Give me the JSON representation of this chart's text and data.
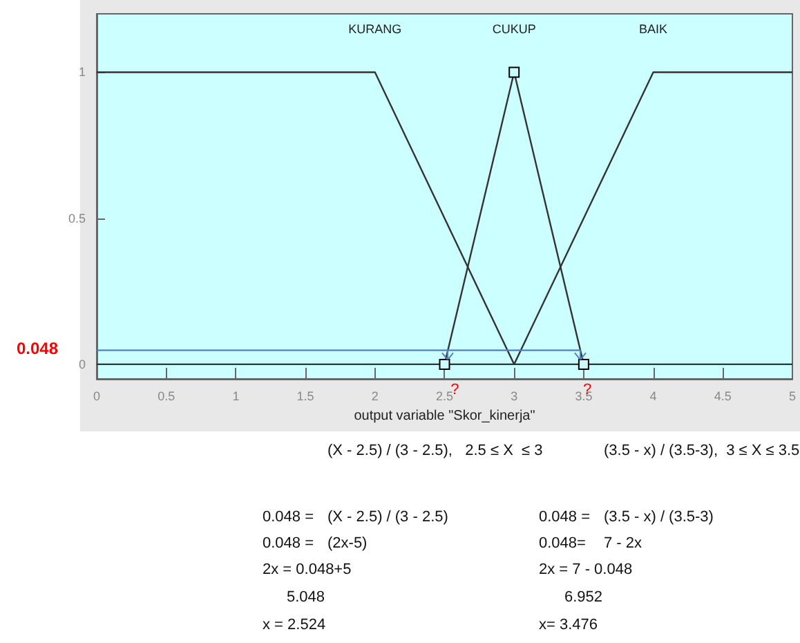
{
  "chart_data": {
    "type": "line",
    "xlabel": "output variable \"Skor_kinerja\"",
    "xlim": [
      0,
      5
    ],
    "xticks": [
      0,
      0.5,
      1,
      1.5,
      2,
      2.5,
      3,
      3.5,
      4,
      4.5,
      5
    ],
    "ylim": [
      -0.05,
      1.2
    ],
    "yticks": [
      0,
      0.5,
      1
    ],
    "grid": false,
    "legend": false,
    "series": [
      {
        "name": "KURANG",
        "color": "#333333",
        "marker": "none",
        "x": [
          0,
          2,
          3,
          5
        ],
        "values": [
          1,
          1,
          0,
          0
        ]
      },
      {
        "name": "CUKUP",
        "color": "#333333",
        "marker": "square",
        "x": [
          2.5,
          3,
          3.5
        ],
        "values": [
          0,
          1,
          0
        ]
      },
      {
        "name": "BAIK",
        "color": "#333333",
        "marker": "none",
        "x": [
          0,
          3,
          4,
          5
        ],
        "values": [
          0,
          0,
          1,
          1
        ]
      },
      {
        "color": "#4f81bd",
        "marker": "none",
        "x": [
          0,
          3.476
        ],
        "values": [
          0.048,
          0.048
        ]
      }
    ],
    "annotations": [
      "0.048",
      "?",
      "?",
      "(X - 2.5) / (3 - 2.5),   2.5 ≤ X  ≤ 3",
      "(3.5 - x) / (3.5-3),  3 ≤ X ≤ 3.5",
      "0.048 =",
      "(X - 2.5) / (3 - 2.5)",
      "0.048 =",
      "(3.5 - x) / (3.5-3)",
      "0.048 =",
      "(2x-5)",
      "0.048=",
      "7 - 2x",
      "2x = 0.048+5",
      "2x = 7 - 0.048",
      "5.048",
      "6.952",
      "x = 2.524",
      "x= 3.476"
    ]
  }
}
